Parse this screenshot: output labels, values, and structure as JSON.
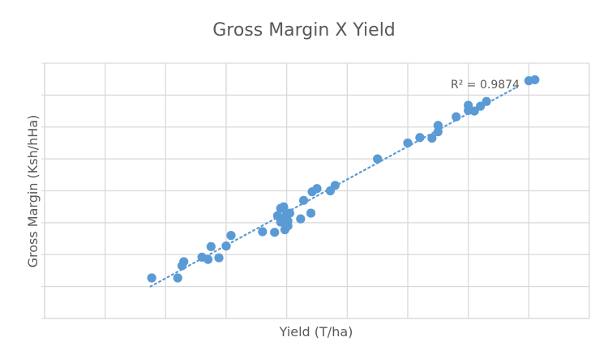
{
  "chart_data": {
    "type": "scatter",
    "title": "Gross Margin X Yield",
    "xlabel": "Yield (T/ha)",
    "ylabel": "Gross Margin (Ksh/hHa)",
    "annotation": "R² = 0.9874",
    "xlim": [
      0,
      9
    ],
    "ylim": [
      0,
      8
    ],
    "grid": true,
    "tick_labels_shown": false,
    "marker_color": "#5b9bd5",
    "trendline": {
      "style": "dotted",
      "color": "#5b9bd5",
      "x": [
        1.75,
        7.8
      ],
      "y": [
        1.0,
        7.25
      ]
    },
    "points": [
      {
        "x": 1.77,
        "y": 1.27
      },
      {
        "x": 2.2,
        "y": 1.27
      },
      {
        "x": 2.27,
        "y": 1.65
      },
      {
        "x": 2.3,
        "y": 1.78
      },
      {
        "x": 2.6,
        "y": 1.92
      },
      {
        "x": 2.7,
        "y": 1.85
      },
      {
        "x": 2.75,
        "y": 2.25
      },
      {
        "x": 2.88,
        "y": 1.9
      },
      {
        "x": 3.0,
        "y": 2.27
      },
      {
        "x": 3.08,
        "y": 2.6
      },
      {
        "x": 3.6,
        "y": 2.72
      },
      {
        "x": 3.8,
        "y": 2.7
      },
      {
        "x": 3.85,
        "y": 3.22
      },
      {
        "x": 3.9,
        "y": 3.02
      },
      {
        "x": 3.9,
        "y": 3.45
      },
      {
        "x": 3.92,
        "y": 3.12
      },
      {
        "x": 3.95,
        "y": 3.5
      },
      {
        "x": 3.97,
        "y": 2.78
      },
      {
        "x": 4.0,
        "y": 3.27
      },
      {
        "x": 4.02,
        "y": 3.05
      },
      {
        "x": 4.02,
        "y": 2.9
      },
      {
        "x": 4.05,
        "y": 3.3
      },
      {
        "x": 4.23,
        "y": 3.12
      },
      {
        "x": 4.28,
        "y": 3.7
      },
      {
        "x": 4.4,
        "y": 3.3
      },
      {
        "x": 4.42,
        "y": 3.97
      },
      {
        "x": 4.5,
        "y": 4.07
      },
      {
        "x": 4.72,
        "y": 4.0
      },
      {
        "x": 4.8,
        "y": 4.17
      },
      {
        "x": 5.5,
        "y": 5.0
      },
      {
        "x": 6.0,
        "y": 5.5
      },
      {
        "x": 6.2,
        "y": 5.67
      },
      {
        "x": 6.4,
        "y": 5.65
      },
      {
        "x": 6.5,
        "y": 5.85
      },
      {
        "x": 6.5,
        "y": 6.05
      },
      {
        "x": 6.8,
        "y": 6.32
      },
      {
        "x": 7.0,
        "y": 6.52
      },
      {
        "x": 7.0,
        "y": 6.68
      },
      {
        "x": 7.1,
        "y": 6.5
      },
      {
        "x": 7.2,
        "y": 6.65
      },
      {
        "x": 7.3,
        "y": 6.8
      },
      {
        "x": 8.0,
        "y": 7.45
      },
      {
        "x": 8.1,
        "y": 7.48
      }
    ]
  }
}
